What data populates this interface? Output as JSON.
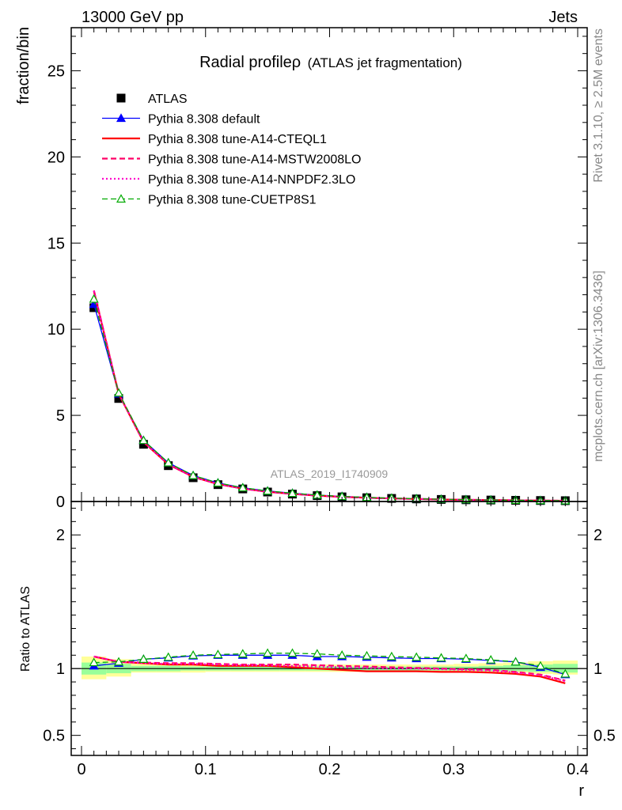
{
  "header": {
    "left": "13000 GeV pp",
    "right": "Jets",
    "side_top": "Rivet 3.1.10, ≥ 2.5M events",
    "side_bottom": "mcplots.cern.ch [arXiv:1306.3436]",
    "watermark": "ATLAS_2019_I1740909"
  },
  "chart_data": [
    {
      "type": "line",
      "title": "Radial profileρ",
      "subtitle": "(ATLAS jet fragmentation)",
      "ylabel": "fraction/bin",
      "xlim": [
        0,
        0.4
      ],
      "ylim": [
        0,
        27.5
      ],
      "yticks": [
        0,
        5,
        10,
        15,
        20,
        25
      ],
      "legend_position": "top-left",
      "x": [
        0.01,
        0.03,
        0.05,
        0.07,
        0.09,
        0.11,
        0.13,
        0.15,
        0.17,
        0.19,
        0.21,
        0.23,
        0.25,
        0.27,
        0.29,
        0.31,
        0.33,
        0.35,
        0.37,
        0.39
      ],
      "series": [
        {
          "name": "ATLAS",
          "style": "marker-square",
          "color": "#000000",
          "values": [
            11.25,
            5.98,
            3.32,
            2.08,
            1.38,
            0.98,
            0.73,
            0.55,
            0.43,
            0.34,
            0.27,
            0.22,
            0.18,
            0.15,
            0.12,
            0.1,
            0.085,
            0.07,
            0.058,
            0.048
          ]
        },
        {
          "name": "Pythia 8.308 default",
          "style": "line-triangle",
          "color": "#0000ff",
          "values": [
            11.45,
            6.25,
            3.55,
            2.25,
            1.51,
            1.08,
            0.8,
            0.61,
            0.48,
            0.37,
            0.3,
            0.24,
            0.19,
            0.16,
            0.13,
            0.11,
            0.09,
            0.074,
            0.059,
            0.046
          ]
        },
        {
          "name": "Pythia 8.308 tune-A14-CTEQL1",
          "style": "solid",
          "color": "#ff0000",
          "values": [
            12.2,
            6.25,
            3.45,
            2.15,
            1.43,
            1.01,
            0.75,
            0.56,
            0.44,
            0.34,
            0.27,
            0.215,
            0.175,
            0.145,
            0.117,
            0.097,
            0.082,
            0.067,
            0.055,
            0.043
          ]
        },
        {
          "name": "Pythia 8.308 tune-A14-MSTW2008LO",
          "style": "dashed",
          "color": "#ff0066",
          "values": [
            12.25,
            6.28,
            3.47,
            2.16,
            1.44,
            1.02,
            0.75,
            0.57,
            0.44,
            0.35,
            0.275,
            0.22,
            0.18,
            0.15,
            0.12,
            0.099,
            0.083,
            0.068,
            0.056,
            0.044
          ]
        },
        {
          "name": "Pythia 8.308 tune-A14-NNPDF2.3LO",
          "style": "dotted",
          "color": "#ff00cc",
          "values": [
            12.22,
            6.26,
            3.46,
            2.16,
            1.43,
            1.015,
            0.75,
            0.565,
            0.44,
            0.345,
            0.272,
            0.218,
            0.178,
            0.147,
            0.118,
            0.098,
            0.083,
            0.068,
            0.056,
            0.044
          ]
        },
        {
          "name": "Pythia 8.308 tune-CUETP8S1",
          "style": "dashed-open-triangle",
          "color": "#00aa00",
          "values": [
            11.75,
            6.3,
            3.55,
            2.25,
            1.51,
            1.08,
            0.8,
            0.61,
            0.48,
            0.375,
            0.295,
            0.24,
            0.195,
            0.16,
            0.128,
            0.106,
            0.089,
            0.073,
            0.059,
            0.046
          ]
        }
      ]
    },
    {
      "type": "line",
      "ylabel": "Ratio to ATLAS",
      "xlabel": "r",
      "xlim": [
        0,
        0.4
      ],
      "ylim": [
        0.35,
        2.25
      ],
      "xticks": [
        0,
        0.1,
        0.2,
        0.3,
        0.4
      ],
      "xtick_labels": [
        "0",
        "0.1",
        "0.2",
        "0.3",
        "0.4"
      ],
      "yticks": [
        0.5,
        1,
        2
      ],
      "ytick_labels": [
        "0.5",
        "1",
        "2"
      ],
      "x": [
        0.01,
        0.03,
        0.05,
        0.07,
        0.09,
        0.11,
        0.13,
        0.15,
        0.17,
        0.19,
        0.21,
        0.23,
        0.25,
        0.27,
        0.29,
        0.31,
        0.33,
        0.35,
        0.37,
        0.39
      ],
      "bands": {
        "yellow_color": "#ffff99",
        "green_color": "#99ff99",
        "edges": [
          0,
          0.02,
          0.04,
          0.06,
          0.08,
          0.1,
          0.12,
          0.14,
          0.16,
          0.18,
          0.2,
          0.22,
          0.24,
          0.26,
          0.28,
          0.3,
          0.32,
          0.34,
          0.36,
          0.38,
          0.4
        ],
        "yellow": [
          [
            0.92,
            1.09
          ],
          [
            0.94,
            1.07
          ],
          [
            0.97,
            1.04
          ],
          [
            0.97,
            1.04
          ],
          [
            0.97,
            1.035
          ],
          [
            0.975,
            1.03
          ],
          [
            0.975,
            1.03
          ],
          [
            0.975,
            1.03
          ],
          [
            0.975,
            1.03
          ],
          [
            0.975,
            1.03
          ],
          [
            0.975,
            1.03
          ],
          [
            0.975,
            1.03
          ],
          [
            0.975,
            1.03
          ],
          [
            0.975,
            1.03
          ],
          [
            0.975,
            1.03
          ],
          [
            0.975,
            1.035
          ],
          [
            0.97,
            1.04
          ],
          [
            0.97,
            1.045
          ],
          [
            0.96,
            1.055
          ],
          [
            0.955,
            1.06
          ]
        ],
        "green": [
          [
            0.955,
            1.045
          ],
          [
            0.965,
            1.035
          ],
          [
            0.98,
            1.02
          ],
          [
            0.98,
            1.02
          ],
          [
            0.985,
            1.015
          ],
          [
            0.985,
            1.015
          ],
          [
            0.985,
            1.015
          ],
          [
            0.985,
            1.015
          ],
          [
            0.985,
            1.015
          ],
          [
            0.985,
            1.015
          ],
          [
            0.985,
            1.015
          ],
          [
            0.985,
            1.015
          ],
          [
            0.985,
            1.015
          ],
          [
            0.985,
            1.015
          ],
          [
            0.985,
            1.015
          ],
          [
            0.985,
            1.015
          ],
          [
            0.98,
            1.02
          ],
          [
            0.98,
            1.025
          ],
          [
            0.975,
            1.03
          ],
          [
            0.97,
            1.035
          ]
        ]
      },
      "series": [
        {
          "name": "Pythia 8.308 default",
          "style": "line-triangle",
          "color": "#0000ff",
          "values": [
            1.02,
            1.04,
            1.07,
            1.08,
            1.095,
            1.1,
            1.1,
            1.1,
            1.1,
            1.09,
            1.09,
            1.085,
            1.08,
            1.075,
            1.075,
            1.07,
            1.06,
            1.05,
            1.01,
            0.955
          ]
        },
        {
          "name": "Pythia 8.308 tune-A14-CTEQL1",
          "style": "solid",
          "color": "#ff0000",
          "values": [
            1.09,
            1.05,
            1.04,
            1.03,
            1.03,
            1.02,
            1.02,
            1.02,
            1.01,
            1.0,
            0.99,
            0.98,
            0.98,
            0.98,
            0.975,
            0.975,
            0.97,
            0.96,
            0.94,
            0.89
          ]
        },
        {
          "name": "Pythia 8.308 tune-A14-MSTW2008LO",
          "style": "dashed",
          "color": "#ff0066",
          "values": [
            1.09,
            1.05,
            1.045,
            1.04,
            1.04,
            1.035,
            1.03,
            1.03,
            1.03,
            1.025,
            1.02,
            1.015,
            1.01,
            1.005,
            1.0,
            0.995,
            0.99,
            0.975,
            0.955,
            0.91
          ]
        },
        {
          "name": "Pythia 8.308 tune-A14-NNPDF2.3LO",
          "style": "dotted",
          "color": "#ff00cc",
          "values": [
            1.09,
            1.05,
            1.04,
            1.035,
            1.035,
            1.03,
            1.025,
            1.025,
            1.02,
            1.015,
            1.01,
            1.005,
            1.0,
            1.0,
            0.995,
            0.99,
            0.985,
            0.97,
            0.95,
            0.905
          ]
        },
        {
          "name": "Pythia 8.308 tune-CUETP8S1",
          "style": "dashed-open-triangle",
          "color": "#00aa00",
          "values": [
            1.045,
            1.05,
            1.07,
            1.085,
            1.1,
            1.105,
            1.11,
            1.115,
            1.115,
            1.11,
            1.1,
            1.095,
            1.09,
            1.085,
            1.08,
            1.075,
            1.065,
            1.05,
            1.02,
            0.96
          ]
        }
      ]
    }
  ]
}
